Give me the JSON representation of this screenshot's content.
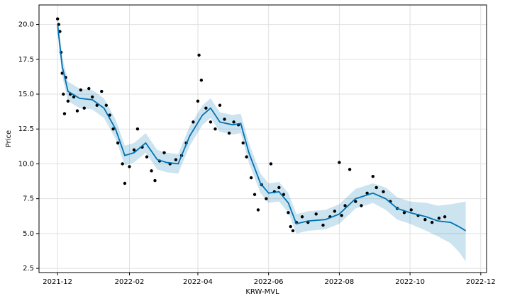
{
  "chart_data": {
    "type": "line",
    "x_label": "KRW-MVL",
    "y_label": "Price",
    "grid": true,
    "xlim": [
      "2021-11-15",
      "2022-12-06"
    ],
    "xticks": [
      {
        "value": "2021-12-01",
        "label": "2021-12"
      },
      {
        "value": "2022-02-01",
        "label": "2022-02"
      },
      {
        "value": "2022-04-01",
        "label": "2022-04"
      },
      {
        "value": "2022-06-01",
        "label": "2022-06"
      },
      {
        "value": "2022-08-01",
        "label": "2022-08"
      },
      {
        "value": "2022-10-01",
        "label": "2022-10"
      },
      {
        "value": "2022-12-01",
        "label": "2022-12"
      }
    ],
    "ylim": [
      2.2,
      21.4
    ],
    "yticks": [
      2.5,
      {
        "value": 5,
        "label": "5.0"
      },
      7.5,
      {
        "value": 10,
        "label": "10.0"
      },
      12.5,
      {
        "value": 15,
        "label": "15.0"
      },
      17.5,
      {
        "value": 20,
        "label": "20.0"
      }
    ],
    "observed": {
      "color": "#000000",
      "x": [
        "2021-12-01",
        "2021-12-02",
        "2021-12-03",
        "2021-12-04",
        "2021-12-05",
        "2021-12-06",
        "2021-12-07",
        "2021-12-08",
        "2021-12-10",
        "2021-12-12",
        "2021-12-15",
        "2021-12-18",
        "2021-12-21",
        "2021-12-24",
        "2021-12-28",
        "2021-12-31",
        "2022-01-04",
        "2022-01-08",
        "2022-01-12",
        "2022-01-15",
        "2022-01-18",
        "2022-01-22",
        "2022-01-26",
        "2022-01-28",
        "2022-02-01",
        "2022-02-05",
        "2022-02-08",
        "2022-02-12",
        "2022-02-16",
        "2022-02-20",
        "2022-02-23",
        "2022-02-27",
        "2022-03-03",
        "2022-03-08",
        "2022-03-13",
        "2022-03-18",
        "2022-03-22",
        "2022-03-28",
        "2022-04-01",
        "2022-04-02",
        "2022-04-04",
        "2022-04-08",
        "2022-04-12",
        "2022-04-16",
        "2022-04-20",
        "2022-04-24",
        "2022-04-28",
        "2022-05-02",
        "2022-05-06",
        "2022-05-10",
        "2022-05-13",
        "2022-05-17",
        "2022-05-20",
        "2022-05-23",
        "2022-05-26",
        "2022-05-30",
        "2022-06-03",
        "2022-06-06",
        "2022-06-10",
        "2022-06-14",
        "2022-06-18",
        "2022-06-20",
        "2022-06-22",
        "2022-06-25",
        "2022-06-30",
        "2022-07-05",
        "2022-07-12",
        "2022-07-18",
        "2022-07-24",
        "2022-07-28",
        "2022-08-01",
        "2022-08-03",
        "2022-08-06",
        "2022-08-10",
        "2022-08-15",
        "2022-08-20",
        "2022-08-25",
        "2022-08-30",
        "2022-09-02",
        "2022-09-08",
        "2022-09-14",
        "2022-09-20",
        "2022-09-26",
        "2022-10-02",
        "2022-10-08",
        "2022-10-14",
        "2022-10-20",
        "2022-10-26",
        "2022-10-31"
      ],
      "values": [
        20.4,
        20.0,
        19.5,
        18.0,
        16.5,
        15.0,
        13.6,
        16.2,
        14.5,
        15.0,
        14.8,
        13.8,
        15.3,
        14.0,
        15.4,
        14.8,
        14.2,
        15.2,
        14.2,
        13.5,
        12.5,
        11.5,
        10.0,
        8.6,
        9.8,
        11.0,
        12.5,
        11.2,
        10.5,
        9.5,
        8.8,
        10.2,
        10.8,
        10.0,
        10.3,
        10.6,
        11.5,
        13.0,
        14.5,
        17.8,
        16.0,
        14.0,
        13.0,
        12.5,
        14.2,
        13.2,
        12.2,
        13.0,
        12.8,
        11.5,
        10.5,
        9.0,
        7.8,
        6.7,
        8.5,
        7.5,
        10.0,
        8.0,
        8.3,
        7.8,
        6.5,
        5.5,
        5.2,
        5.8,
        6.2,
        5.8,
        6.4,
        5.6,
        6.2,
        6.6,
        10.1,
        6.3,
        7.0,
        9.6,
        7.3,
        7.0,
        7.9,
        9.1,
        8.3,
        8.0,
        7.3,
        6.8,
        6.5,
        6.7,
        6.3,
        6.0,
        5.8,
        6.1,
        6.2
      ]
    },
    "forecast": {
      "color": "#0072B2",
      "x": [
        "2021-12-01",
        "2021-12-05",
        "2021-12-10",
        "2021-12-20",
        "2021-12-31",
        "2022-01-10",
        "2022-01-20",
        "2022-01-28",
        "2022-02-05",
        "2022-02-15",
        "2022-02-25",
        "2022-03-05",
        "2022-03-15",
        "2022-03-25",
        "2022-04-05",
        "2022-04-12",
        "2022-04-20",
        "2022-05-01",
        "2022-05-08",
        "2022-05-15",
        "2022-05-25",
        "2022-06-01",
        "2022-06-10",
        "2022-06-18",
        "2022-06-25",
        "2022-07-05",
        "2022-07-20",
        "2022-08-01",
        "2022-08-15",
        "2022-08-30",
        "2022-09-10",
        "2022-09-20",
        "2022-10-01",
        "2022-10-15",
        "2022-10-25",
        "2022-11-05",
        "2022-11-12",
        "2022-11-18"
      ],
      "values": [
        20.0,
        17.0,
        15.2,
        14.7,
        14.6,
        14.0,
        12.5,
        10.6,
        10.8,
        11.5,
        10.3,
        10.1,
        10.0,
        12.0,
        13.5,
        14.0,
        13.0,
        12.8,
        12.9,
        10.8,
        8.6,
        7.9,
        8.0,
        7.2,
        5.7,
        5.9,
        6.0,
        6.4,
        7.5,
        7.9,
        7.5,
        6.8,
        6.5,
        6.2,
        5.9,
        5.8,
        5.5,
        5.2
      ],
      "lower": [
        19.3,
        16.3,
        14.5,
        14.0,
        13.9,
        13.3,
        11.8,
        9.9,
        10.1,
        10.8,
        9.6,
        9.4,
        9.3,
        11.3,
        12.8,
        13.3,
        12.3,
        12.1,
        12.2,
        10.1,
        7.9,
        7.2,
        7.3,
        6.5,
        5.0,
        5.2,
        5.3,
        5.7,
        6.8,
        7.2,
        6.7,
        6.0,
        5.7,
        5.2,
        4.8,
        4.3,
        3.7,
        3.0
      ],
      "upper": [
        20.7,
        17.7,
        15.9,
        15.4,
        15.3,
        14.7,
        13.2,
        11.3,
        11.5,
        12.2,
        11.0,
        10.8,
        10.7,
        12.7,
        14.2,
        14.7,
        13.7,
        13.5,
        13.6,
        11.5,
        9.3,
        8.6,
        8.7,
        7.9,
        6.4,
        6.6,
        6.7,
        7.1,
        8.2,
        8.6,
        8.3,
        7.6,
        7.3,
        7.2,
        7.0,
        7.1,
        7.2,
        7.3
      ]
    }
  }
}
